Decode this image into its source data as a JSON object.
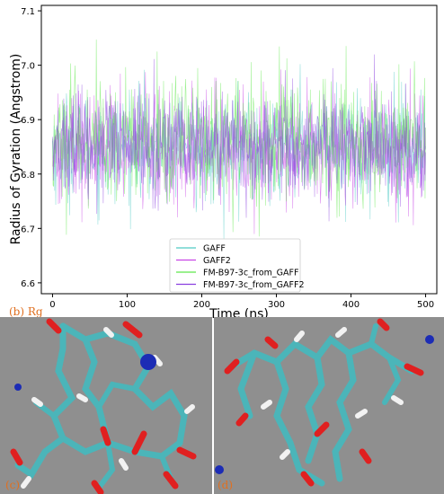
{
  "chart_data": {
    "type": "line",
    "title": "",
    "xlabel": "Time (ns)",
    "ylabel": "Radius of Gyration (Angstrom)",
    "xlim": [
      -15,
      515
    ],
    "ylim": [
      6.58,
      7.11
    ],
    "xticks": [
      0,
      100,
      200,
      300,
      400,
      500
    ],
    "yticks": [
      6.6,
      6.7,
      6.8,
      6.9,
      7.0,
      7.1
    ],
    "legend_position": "lower-right",
    "series": [
      {
        "name": "GAFF",
        "color": "#4fc9c4",
        "mean": 6.85,
        "std": 0.05,
        "min": 6.68,
        "max": 7.04,
        "x_range": [
          0,
          500
        ]
      },
      {
        "name": "GAFF2",
        "color": "#c844e6",
        "mean": 6.85,
        "std": 0.052,
        "min": 6.62,
        "max": 7.02,
        "x_range": [
          0,
          500
        ]
      },
      {
        "name": "FM-B97-3c_from_GAFF",
        "color": "#5de84a",
        "mean": 6.86,
        "std": 0.055,
        "min": 6.66,
        "max": 7.06,
        "x_range": [
          0,
          500
        ]
      },
      {
        "name": "FM-B97-3c_from_GAFF2",
        "color": "#8a3fe0",
        "mean": 6.85,
        "std": 0.048,
        "min": 6.69,
        "max": 7.02,
        "x_range": [
          0,
          500
        ]
      }
    ]
  },
  "panels": {
    "b": "(b) Rg",
    "c": "(c)",
    "d": "(d)"
  },
  "colors": {
    "carbon": "#4bb5b9",
    "oxygen": "#e02020",
    "hydrogen": "#f2f2f2",
    "ion": "#1c2cb5",
    "background": "#8f8f8f"
  }
}
